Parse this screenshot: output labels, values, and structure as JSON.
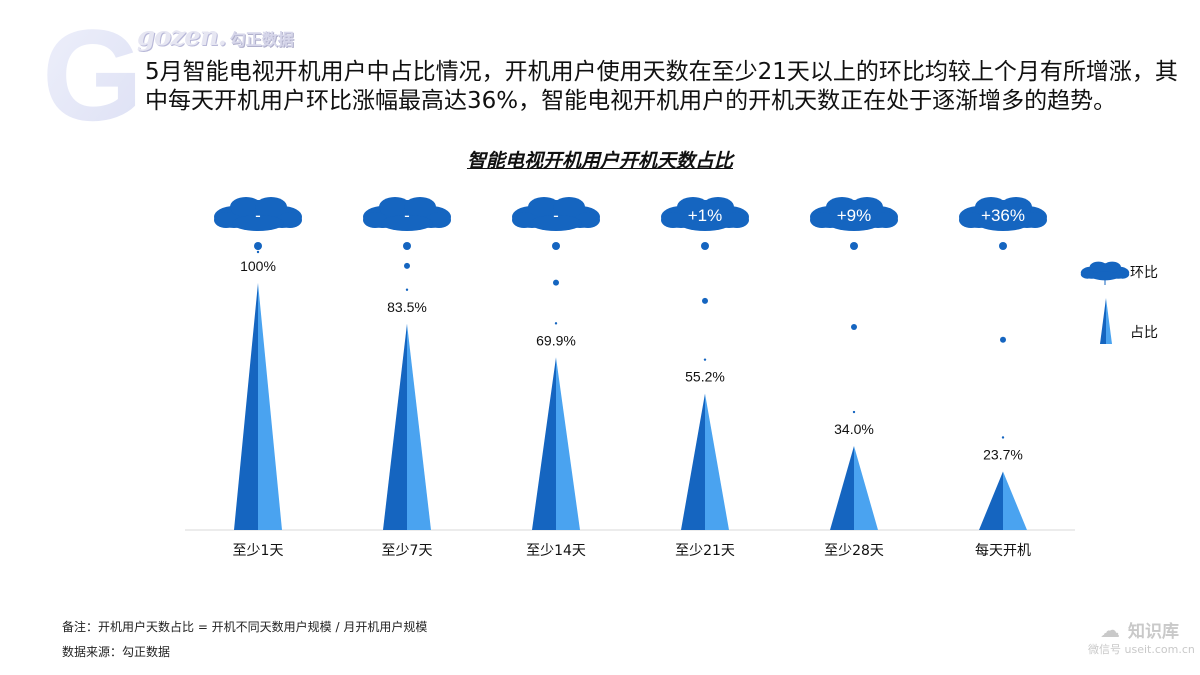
{
  "brand": {
    "logo_en": "gozen.",
    "logo_cn": "勾正数据",
    "letter": "G"
  },
  "description": "5月智能电视开机用户中占比情况，开机用户使用天数在至少21天以上的环比均较上个月有所增涨，其中每天开机用户环比涨幅最高达36%，智能电视开机用户的开机天数正在处于逐渐增多的趋势。",
  "chart_data": {
    "type": "bar",
    "title": "智能电视开机用户开机天数占比",
    "categories": [
      "至少1天",
      "至少7天",
      "至少14天",
      "至少21天",
      "至少28天",
      "每天开机"
    ],
    "values": [
      100,
      83.5,
      69.9,
      55.2,
      34.0,
      23.7
    ],
    "value_labels": [
      "100%",
      "83.5%",
      "69.9%",
      "55.2%",
      "34.0%",
      "23.7%"
    ],
    "mom_labels": [
      "-",
      "-",
      "-",
      "+1%",
      "+9%",
      "+36%"
    ],
    "legend": [
      "环比",
      "占比"
    ],
    "legend_position": "right",
    "ylim": [
      0,
      100
    ],
    "grid": false,
    "colors": {
      "cone_dark": "#1565c0",
      "cone_light": "#4aa3f0",
      "cloud": "#1565c0",
      "baseline": "#d9d9d9"
    }
  },
  "notes": {
    "remark": "备注：开机用户天数占比 = 开机不同天数用户规模 / 月开机用户规模",
    "source": "数据来源：勾正数据"
  },
  "watermark": {
    "icon": "wechat-icon",
    "name": "知识库",
    "account": "微信号 useit.com.cn"
  }
}
